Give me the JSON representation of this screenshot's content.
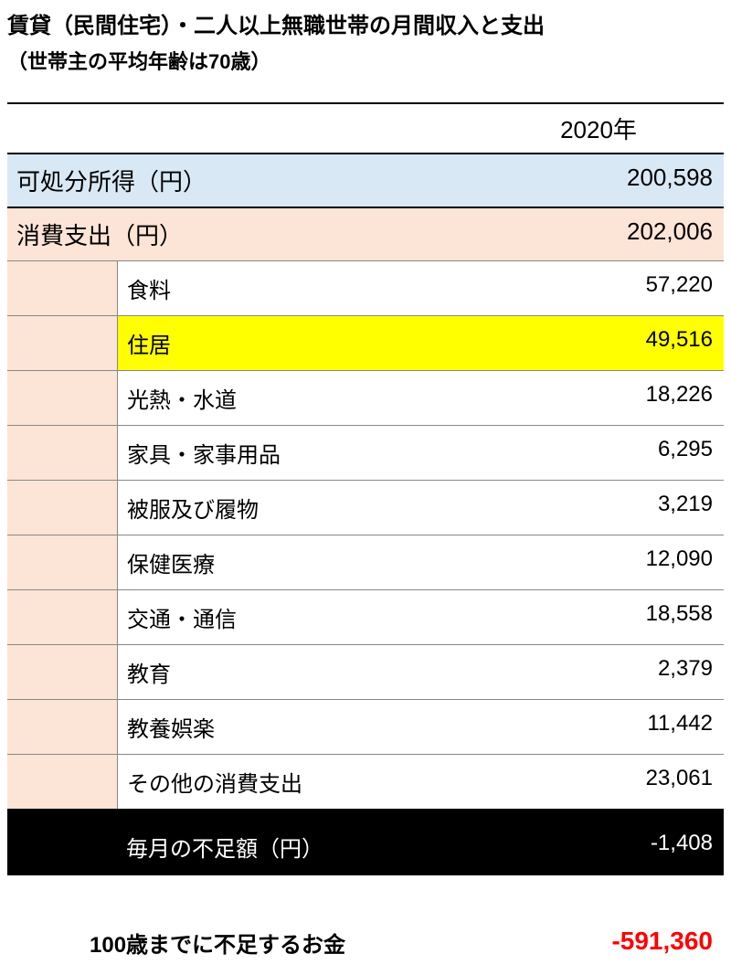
{
  "header": {
    "title": "賃貸（民間住宅）・二人以上無職世帯の月間収入と支出",
    "subtitle": "（世帯主の平均年齢は70歳）"
  },
  "year": "2020年",
  "income": {
    "label": "可処分所得（円）",
    "value": "200,598",
    "bg_color": "#d9e8f5"
  },
  "expense": {
    "label": "消費支出（円）",
    "value": "202,006",
    "bg_color": "#fce4d6"
  },
  "details": [
    {
      "label": "食料",
      "value": "57,220",
      "highlight": false
    },
    {
      "label": "住居",
      "value": "49,516",
      "highlight": true
    },
    {
      "label": "光熱・水道",
      "value": "18,226",
      "highlight": false
    },
    {
      "label": "家具・家事用品",
      "value": "6,295",
      "highlight": false
    },
    {
      "label": "被服及び履物",
      "value": "3,219",
      "highlight": false
    },
    {
      "label": "保健医療",
      "value": "12,090",
      "highlight": false
    },
    {
      "label": "交通・通信",
      "value": "18,558",
      "highlight": false
    },
    {
      "label": "教育",
      "value": "2,379",
      "highlight": false
    },
    {
      "label": "教養娯楽",
      "value": "11,442",
      "highlight": false
    },
    {
      "label": "その他の消費支出",
      "value": "23,061",
      "highlight": false
    }
  ],
  "monthly_shortfall": {
    "label": "毎月の不足額（円）",
    "value": "-1,408"
  },
  "total_shortfall": {
    "label": "100歳までに不足するお金",
    "value": "-591,360",
    "value_color": "#ff0000"
  },
  "styling": {
    "highlight_color": "#ffff00",
    "border_color_main": "#000000",
    "border_color_sub": "#888888",
    "title_fontsize": 24,
    "cell_fontsize": 26,
    "detail_fontsize": 24,
    "total_value_fontsize": 28
  }
}
